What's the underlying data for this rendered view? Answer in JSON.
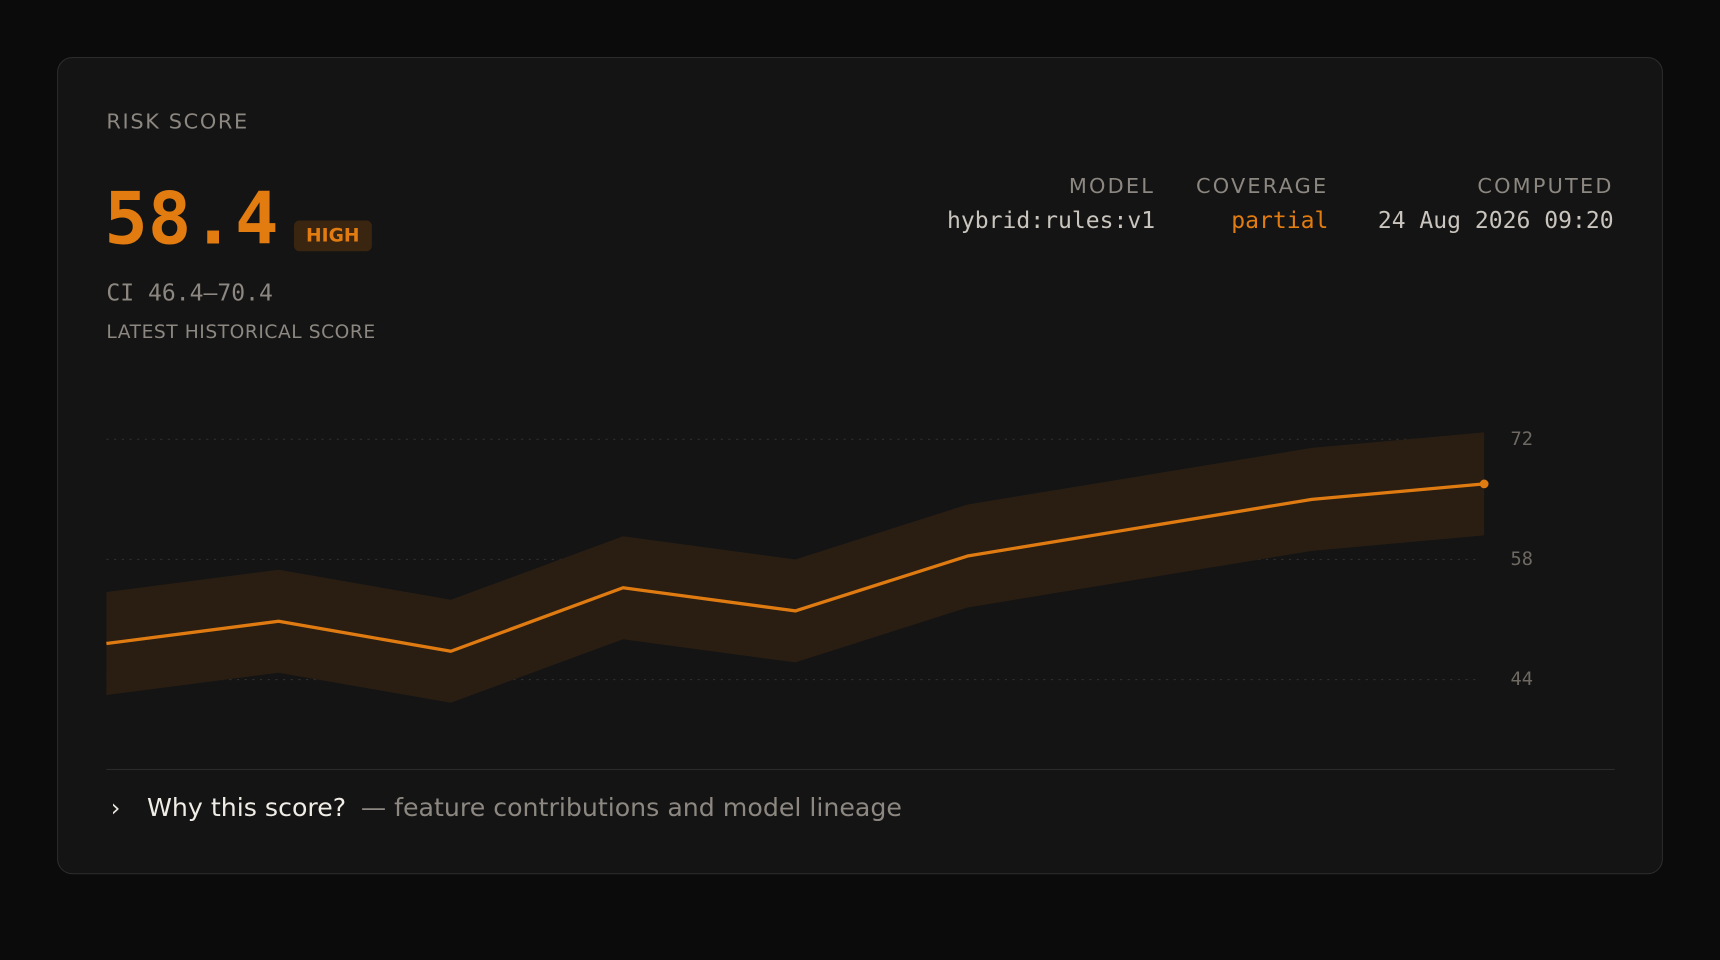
{
  "header": {
    "label": "RISK SCORE",
    "score": 58.4,
    "badge": "HIGH",
    "ci": "CI 46.4–70.4",
    "sublabel": "LATEST HISTORICAL SCORE"
  },
  "meta": [
    {
      "label": "MODEL",
      "value": "hybrid:rules:v1"
    },
    {
      "label": "COVERAGE",
      "value": "partial"
    },
    {
      "label": "COMPUTED",
      "value": "24 Aug 2026 09:20"
    }
  ],
  "chart_data": {
    "type": "line",
    "categories": [
      null,
      null,
      null,
      null,
      null,
      null,
      null,
      null,
      null
    ],
    "values": [
      48.2,
      50.8,
      47.3,
      54.7,
      52.0,
      58.4,
      61.7,
      65.0,
      66.8
    ],
    "lower": [
      42.2,
      44.8,
      41.3,
      48.7,
      46.0,
      52.4,
      55.7,
      59.0,
      60.8
    ],
    "upper": [
      54.2,
      56.8,
      53.3,
      60.7,
      58.0,
      64.4,
      67.7,
      71.0,
      72.8
    ],
    "color": "#e07b12",
    "band_color": "#2a1e13",
    "ylim": [
      41,
      75
    ],
    "yticks": [
      72,
      58,
      44
    ],
    "grid": true
  },
  "footer": {
    "link": "Why this score?",
    "note": "— feature contributions and model lineage"
  }
}
